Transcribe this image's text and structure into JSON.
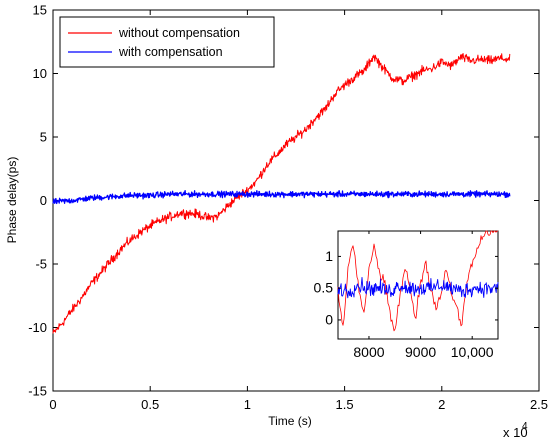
{
  "chart_data": [
    {
      "type": "line",
      "xlabel": "Time (s)",
      "ylabel": "Phase delay(ps)",
      "x_multiplier": "x 10",
      "x_multiplier_exp": "4",
      "xlim": [
        0,
        2.5
      ],
      "ylim": [
        -15,
        15
      ],
      "x_ticks": [
        "0",
        "0.5",
        "1",
        "1.5",
        "2",
        "2.5"
      ],
      "y_ticks": [
        "-15",
        "-10",
        "-5",
        "0",
        "5",
        "10",
        "15"
      ],
      "grid": false,
      "legend_position": "top-left",
      "series": [
        {
          "name": "without compensation",
          "color": "#ff0000",
          "x": [
            0,
            0.05,
            0.1,
            0.15,
            0.2,
            0.25,
            0.3,
            0.35,
            0.4,
            0.45,
            0.5,
            0.55,
            0.6,
            0.65,
            0.7,
            0.75,
            0.8,
            0.85,
            0.9,
            0.95,
            1.0,
            1.05,
            1.1,
            1.15,
            1.2,
            1.25,
            1.3,
            1.35,
            1.4,
            1.45,
            1.5,
            1.55,
            1.6,
            1.65,
            1.7,
            1.75,
            1.8,
            1.85,
            1.9,
            1.95,
            2.0,
            2.05,
            2.1,
            2.15,
            2.2,
            2.25,
            2.3,
            2.35
          ],
          "y": [
            -10.5,
            -9.6,
            -8.6,
            -7.6,
            -6.5,
            -5.6,
            -4.7,
            -3.8,
            -3.1,
            -2.5,
            -2.0,
            -1.6,
            -1.3,
            -1.0,
            -1.0,
            -1.1,
            -1.4,
            -1.2,
            -0.4,
            0.3,
            0.8,
            1.6,
            2.8,
            3.6,
            4.4,
            5.0,
            5.6,
            6.5,
            7.2,
            8.4,
            9.1,
            9.7,
            10.2,
            11.4,
            10.4,
            9.6,
            9.4,
            9.8,
            10.2,
            10.4,
            10.9,
            10.6,
            11.3,
            11.0,
            11.1,
            11.0,
            11.2,
            11.1
          ]
        },
        {
          "name": "with compensation",
          "color": "#0000ff",
          "x": [
            0,
            0.1,
            0.2,
            0.3,
            0.4,
            0.5,
            0.6,
            0.7,
            0.8,
            0.9,
            1.0,
            1.1,
            1.2,
            1.3,
            1.4,
            1.5,
            1.6,
            1.7,
            1.8,
            1.9,
            2.0,
            2.1,
            2.2,
            2.3,
            2.35
          ],
          "y": [
            -0.1,
            0.0,
            0.2,
            0.3,
            0.4,
            0.4,
            0.5,
            0.5,
            0.5,
            0.5,
            0.5,
            0.5,
            0.5,
            0.5,
            0.5,
            0.5,
            0.5,
            0.5,
            0.5,
            0.5,
            0.5,
            0.5,
            0.5,
            0.5,
            0.5
          ]
        }
      ]
    },
    {
      "type": "line",
      "role": "inset",
      "xlim": [
        7400,
        10500
      ],
      "ylim": [
        -0.3,
        1.4
      ],
      "x_ticks": [
        "8000",
        "9000",
        "10,000"
      ],
      "y_ticks": [
        "0",
        "0.5",
        "1"
      ],
      "grid": false,
      "series": [
        {
          "name": "without compensation",
          "color": "#ff0000",
          "x": [
            7400,
            7500,
            7600,
            7700,
            7800,
            7900,
            8000,
            8100,
            8200,
            8300,
            8400,
            8500,
            8600,
            8700,
            8800,
            8900,
            9000,
            9100,
            9200,
            9300,
            9400,
            9500,
            9600,
            9700,
            9800,
            9900,
            10000,
            10100,
            10200,
            10300,
            10400,
            10500
          ],
          "y": [
            0.5,
            -0.2,
            0.9,
            1.2,
            0.5,
            0.1,
            0.8,
            1.2,
            0.7,
            0.6,
            0.1,
            -0.2,
            0.4,
            0.8,
            0.5,
            0.0,
            0.6,
            0.9,
            0.5,
            0.2,
            0.4,
            0.8,
            0.4,
            0.2,
            -0.1,
            0.6,
            0.9,
            1.1,
            1.3,
            1.4,
            1.4,
            1.4
          ]
        },
        {
          "name": "with compensation",
          "color": "#0000ff",
          "x": [
            7400,
            7600,
            7800,
            8000,
            8200,
            8400,
            8600,
            8800,
            9000,
            9200,
            9400,
            9600,
            9800,
            10000,
            10200,
            10400,
            10500
          ],
          "y": [
            0.5,
            0.45,
            0.55,
            0.5,
            0.5,
            0.45,
            0.55,
            0.5,
            0.5,
            0.5,
            0.55,
            0.5,
            0.45,
            0.5,
            0.5,
            0.5,
            0.5
          ]
        }
      ]
    }
  ]
}
